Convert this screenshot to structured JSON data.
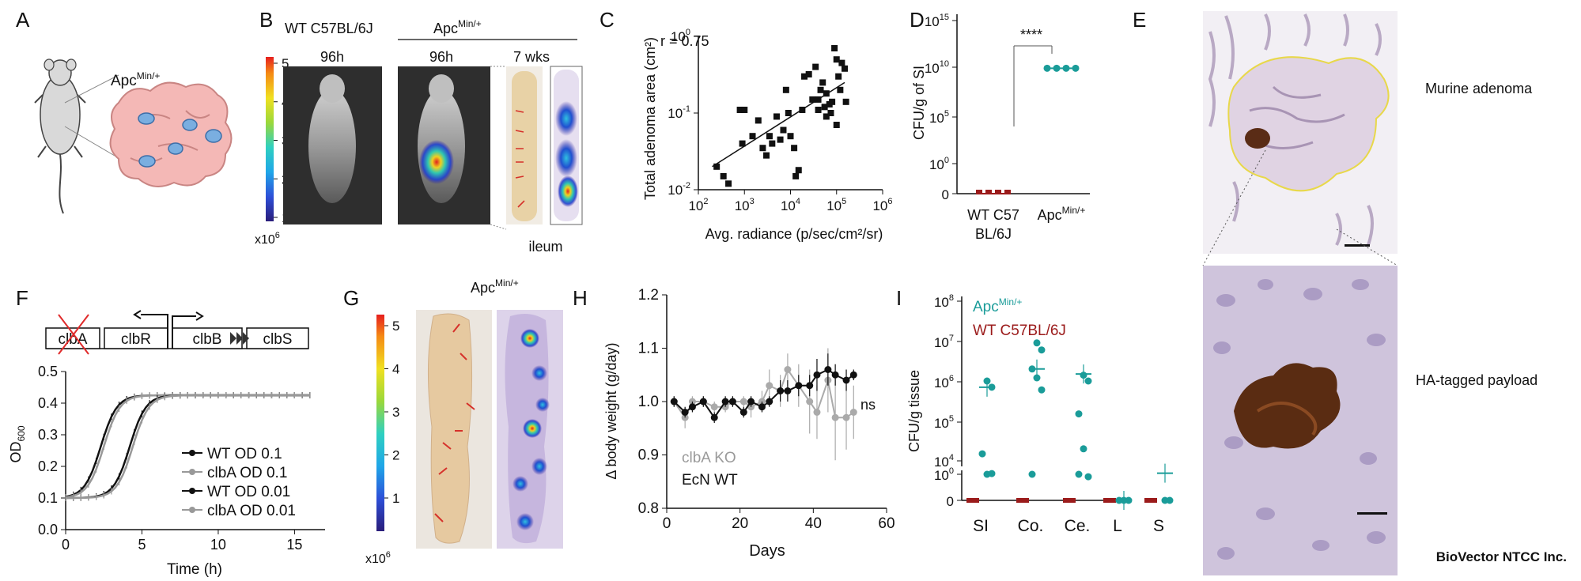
{
  "panels": {
    "A": {
      "letter": "A",
      "genotype": "Apc",
      "genotype_sup": "Min/+",
      "icons": [
        "mouse-silhouette-icon",
        "intestine-with-adenomas-icon"
      ]
    },
    "B": {
      "letter": "B",
      "wt_label": "WT C57BL/6J",
      "apc_label": "Apc",
      "apc_sup": "Min/+",
      "time_wt": "96h",
      "time_apc": "96h",
      "time_7wk": "7 wks",
      "tissue": "ileum",
      "colorbar_ticks": [
        "5",
        "4",
        "3",
        "2",
        "1"
      ],
      "colorbar_scale": "x10",
      "colorbar_scale_exp": "6"
    },
    "C": {
      "letter": "C",
      "annotation": "r = 0.75",
      "ylabel": "Total adenoma area (cm²)",
      "xlabel": "Avg. radiance (p/sec/cm²/sr)"
    },
    "D": {
      "letter": "D",
      "ylabel": "CFU/g of SI",
      "significance": "****",
      "x_wt_line1": "WT C57",
      "x_wt_line2": "BL/6J",
      "x_apc": "Apc",
      "x_apc_sup": "Min/+"
    },
    "E": {
      "letter": "E",
      "top_label": "Murine adenoma",
      "bottom_label": "HA-tagged payload"
    },
    "F": {
      "letter": "F",
      "genes": [
        "clbA",
        "clbR",
        "clbB",
        "clbS"
      ],
      "ylabel": "OD",
      "ylabel_sub": "600",
      "xlabel": "Time (h)"
    },
    "G": {
      "letter": "G",
      "apc_label": "Apc",
      "apc_sup": "Min/+",
      "colorbar_ticks": [
        "5",
        "4",
        "3",
        "2",
        "1"
      ],
      "colorbar_scale": "x10",
      "colorbar_scale_exp": "6"
    },
    "H": {
      "letter": "H",
      "ylabel": "Δ body weight (g/day)",
      "xlabel": "Days",
      "significance": "ns",
      "legend_ko": "clbA KO",
      "legend_wt": "EcN WT"
    },
    "I": {
      "letter": "I",
      "ylabel": "CFU/g tissue",
      "legend_apc": "Apc",
      "legend_apc_sup": "Min/+",
      "legend_wt": "WT C57BL/6J",
      "colors": {
        "apc": "#1a9c99",
        "wt": "#9b1b1b"
      }
    }
  },
  "footer": "BioVector NTCC Inc.",
  "chart_data": [
    {
      "panel": "C",
      "type": "scatter",
      "xscale": "log",
      "yscale": "log",
      "xlim": [
        100,
        1000000
      ],
      "ylim": [
        0.01,
        1
      ],
      "x_ticks": [
        "10",
        "10",
        "10",
        "10",
        "10"
      ],
      "x_tick_exps": [
        "2",
        "3",
        "4",
        "5",
        "6"
      ],
      "y_ticks": [
        "10",
        "10",
        "10"
      ],
      "y_tick_exps": [
        "-2",
        "-1",
        "0"
      ],
      "fit": {
        "x": [
          200,
          150000
        ],
        "y": [
          0.02,
          0.25
        ]
      },
      "points": [
        [
          250,
          0.02
        ],
        [
          350,
          0.015
        ],
        [
          450,
          0.012
        ],
        [
          800,
          0.11
        ],
        [
          1000,
          0.11
        ],
        [
          900,
          0.04
        ],
        [
          1500,
          0.05
        ],
        [
          2000,
          0.08
        ],
        [
          2500,
          0.035
        ],
        [
          3000,
          0.028
        ],
        [
          3500,
          0.05
        ],
        [
          4000,
          0.04
        ],
        [
          5000,
          0.09
        ],
        [
          6000,
          0.045
        ],
        [
          7000,
          0.06
        ],
        [
          8000,
          0.2
        ],
        [
          9000,
          0.1
        ],
        [
          10000,
          0.05
        ],
        [
          12000,
          0.035
        ],
        [
          15000,
          0.018
        ],
        [
          13000,
          0.015
        ],
        [
          18000,
          0.11
        ],
        [
          20000,
          0.3
        ],
        [
          25000,
          0.32
        ],
        [
          30000,
          0.15
        ],
        [
          35000,
          0.4
        ],
        [
          40000,
          0.15
        ],
        [
          45000,
          0.2
        ],
        [
          50000,
          0.25
        ],
        [
          55000,
          0.12
        ],
        [
          60000,
          0.18
        ],
        [
          70000,
          0.13
        ],
        [
          80000,
          0.14
        ],
        [
          90000,
          0.7
        ],
        [
          100000,
          0.5
        ],
        [
          110000,
          0.3
        ],
        [
          120000,
          0.2
        ],
        [
          130000,
          0.45
        ],
        [
          150000,
          0.38
        ],
        [
          160000,
          0.14
        ],
        [
          100000,
          0.07
        ],
        [
          60000,
          0.09
        ],
        [
          40000,
          0.11
        ],
        [
          75000,
          0.1
        ]
      ]
    },
    {
      "panel": "D",
      "type": "scatter",
      "yscale": "log",
      "categories": [
        "WT C57BL/6J",
        "ApcMin/+"
      ],
      "y_ticks": [
        "10",
        "10",
        "10",
        "10",
        "0"
      ],
      "y_tick_exps": [
        "15",
        "10",
        "5",
        "0",
        ""
      ],
      "series": [
        {
          "name": "WT C57BL/6J",
          "values": [
            0,
            0,
            0,
            0
          ]
        },
        {
          "name": "ApcMin/+",
          "values": [
            10000000000.0,
            10000000000.0,
            10000000000.0,
            10000000000.0
          ]
        }
      ]
    },
    {
      "panel": "F",
      "type": "line",
      "xlim": [
        0,
        17
      ],
      "ylim": [
        0,
        0.5
      ],
      "x_ticks": [
        "0",
        "5",
        "10",
        "15"
      ],
      "y_ticks": [
        "0.0",
        "0.1",
        "0.2",
        "0.3",
        "0.4",
        "0.5"
      ],
      "legend": [
        "WT OD 0.1",
        "clbA OD 0.1",
        "WT OD 0.01",
        "clbA OD 0.01"
      ],
      "series": [
        {
          "name": "WT OD 0.1",
          "color": "#111111",
          "midpoint": 2.3,
          "lag": 0.0
        },
        {
          "name": "clbA OD 0.1",
          "color": "#999999",
          "midpoint": 2.5,
          "lag": 0.0
        },
        {
          "name": "WT OD 0.01",
          "color": "#111111",
          "midpoint": 4.2,
          "lag": 0.0
        },
        {
          "name": "clbA OD 0.01",
          "color": "#999999",
          "midpoint": 4.4,
          "lag": 0.0
        }
      ]
    },
    {
      "panel": "H",
      "type": "line",
      "xlim": [
        0,
        60
      ],
      "ylim": [
        0.8,
        1.2
      ],
      "x_ticks": [
        "0",
        "20",
        "40",
        "60"
      ],
      "y_ticks": [
        "0.8",
        "0.9",
        "1.0",
        "1.1",
        "1.2"
      ],
      "series": [
        {
          "name": "EcN WT",
          "color": "#111111",
          "x": [
            2,
            5,
            7,
            10,
            13,
            16,
            18,
            21,
            23,
            26,
            28,
            31,
            33,
            36,
            39,
            41,
            44,
            46,
            49,
            51
          ],
          "y": [
            1.0,
            0.98,
            0.99,
            1.0,
            0.97,
            1.0,
            1.0,
            0.98,
            1.0,
            0.99,
            1.0,
            1.02,
            1.02,
            1.03,
            1.03,
            1.05,
            1.06,
            1.05,
            1.04,
            1.05
          ],
          "err": [
            0.01,
            0.01,
            0.01,
            0.01,
            0.01,
            0.01,
            0.01,
            0.01,
            0.01,
            0.01,
            0.01,
            0.02,
            0.02,
            0.02,
            0.02,
            0.03,
            0.03,
            0.02,
            0.02,
            0.01
          ]
        },
        {
          "name": "clbA KO",
          "color": "#aaaaaa",
          "x": [
            2,
            5,
            7,
            10,
            13,
            16,
            18,
            21,
            23,
            26,
            28,
            31,
            33,
            36,
            39,
            41,
            44,
            46,
            49,
            51
          ],
          "y": [
            1.0,
            0.97,
            1.0,
            1.0,
            0.99,
            0.99,
            1.0,
            1.0,
            0.99,
            1.0,
            1.03,
            1.02,
            1.06,
            1.03,
            1.0,
            0.98,
            1.04,
            0.97,
            0.97,
            0.98
          ],
          "err": [
            0.01,
            0.02,
            0.01,
            0.01,
            0.01,
            0.01,
            0.01,
            0.01,
            0.02,
            0.02,
            0.03,
            0.03,
            0.03,
            0.04,
            0.06,
            0.05,
            0.06,
            0.08,
            0.06,
            0.05
          ]
        }
      ]
    },
    {
      "panel": "I",
      "type": "scatter",
      "yscale": "log",
      "categories": [
        "SI",
        "Co.",
        "Ce.",
        "L",
        "S"
      ],
      "y_ticks": [
        "10",
        "10",
        "10",
        "10",
        "10",
        "10",
        "0"
      ],
      "y_tick_exps": [
        "8",
        "7",
        "6",
        "5",
        "4",
        "0",
        ""
      ],
      "series": [
        {
          "name": "ApcMin/+",
          "points": [
            [
              0,
              1000000.0
            ],
            [
              0,
              700000.0
            ],
            [
              0,
              15000.0
            ],
            [
              0,
              1
            ],
            [
              0,
              1.3
            ],
            [
              1,
              9000000.0
            ],
            [
              1,
              6000000.0
            ],
            [
              1,
              2000000.0
            ],
            [
              1,
              1200000.0
            ],
            [
              1,
              600000.0
            ],
            [
              1,
              1
            ],
            [
              2,
              1400000.0
            ],
            [
              2,
              1000000.0
            ],
            [
              2,
              150000.0
            ],
            [
              2,
              20000.0
            ],
            [
              2,
              4000.0
            ],
            [
              2,
              1
            ],
            [
              3,
              0
            ],
            [
              3,
              0
            ],
            [
              3,
              0
            ],
            [
              4,
              0
            ],
            [
              4,
              0
            ]
          ],
          "means": [
            700000.0,
            2000000.0,
            1500000.0,
            0,
            1.5
          ]
        },
        {
          "name": "WT C57BL/6J",
          "points": [
            [
              0,
              0
            ],
            [
              0,
              0
            ],
            [
              1,
              0
            ],
            [
              1,
              0
            ],
            [
              2,
              0
            ],
            [
              2,
              0
            ],
            [
              3,
              0
            ],
            [
              3,
              0
            ],
            [
              4,
              0
            ],
            [
              4,
              0
            ]
          ]
        }
      ]
    }
  ]
}
